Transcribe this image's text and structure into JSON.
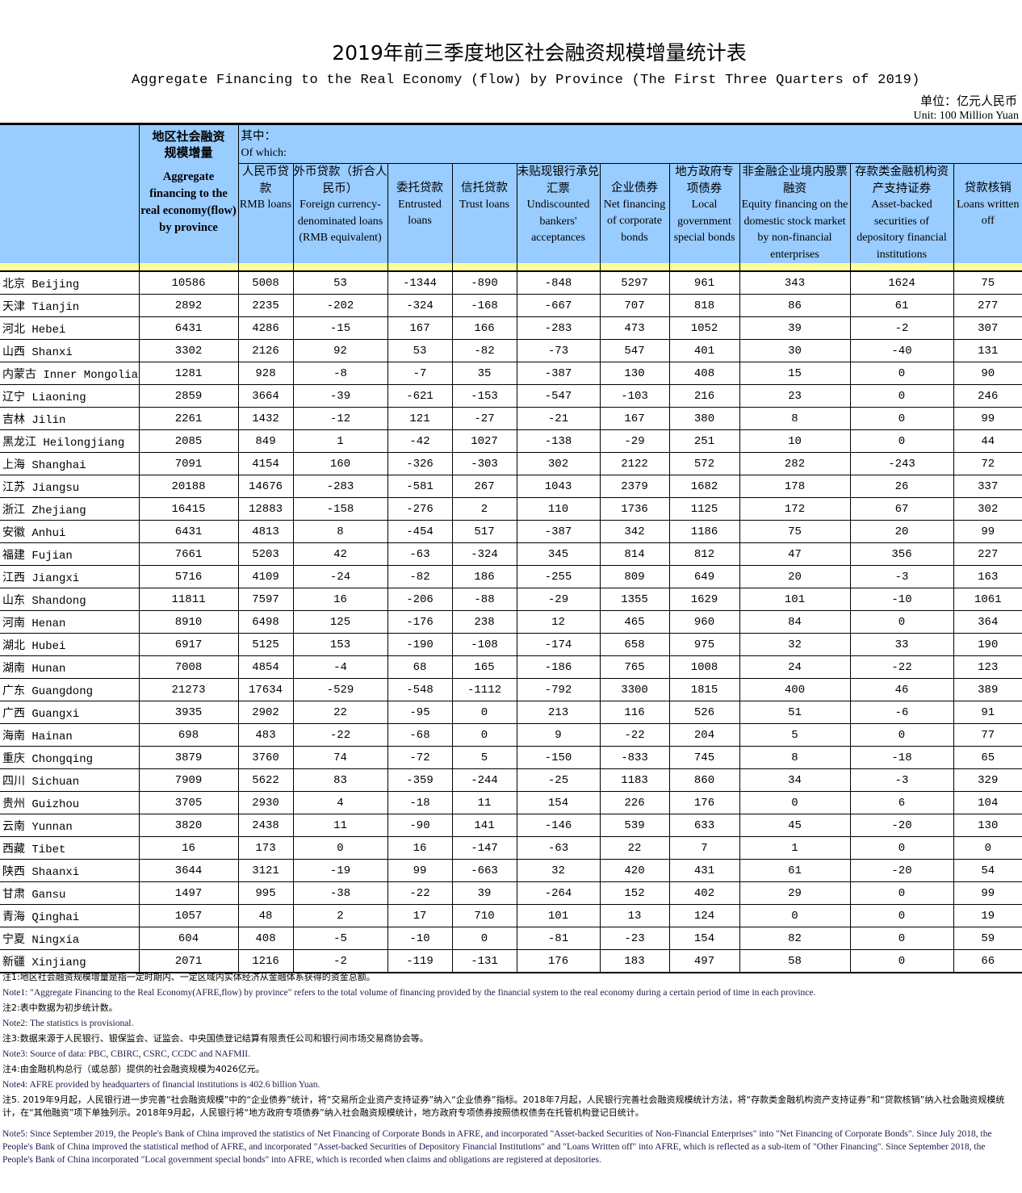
{
  "title": "2019年前三季度地区社会融资规模增量统计表",
  "subtitle": "Aggregate Financing to the Real Economy (flow)  by Province (The First Three Quarters of 2019)",
  "unit_cn": "单位：亿元人民币",
  "unit_en": "Unit: 100 Million Yuan",
  "header": {
    "total_cn": "地区社会融资规模增量",
    "total_en": "Aggregate financing to the real economy(flow) by province",
    "of_which_cn": "其中：",
    "of_which_en": "Of which:",
    "columns": [
      {
        "cn": "人民币贷款",
        "en": "RMB loans"
      },
      {
        "cn": "外币贷款（折合人民币）",
        "en": "Foreign currency-denominated loans (RMB equivalent)"
      },
      {
        "cn": "委托贷款",
        "en": "Entrusted loans"
      },
      {
        "cn": "信托贷款",
        "en": "Trust loans"
      },
      {
        "cn": "未贴现银行承兑汇票",
        "en": "Undiscounted bankers' acceptances"
      },
      {
        "cn": "企业债券",
        "en": "Net financing of corporate bonds"
      },
      {
        "cn": "地方政府专项债券",
        "en": "Local government special bonds"
      },
      {
        "cn": "非金融企业境内股票融资",
        "en": "Equity financing on the domestic stock market by non-financial enterprises"
      },
      {
        "cn": "存款类金融机构资产支持证券",
        "en": "Asset-backed securities of depository financial institutions"
      },
      {
        "cn": "贷款核销",
        "en": "Loans written off"
      }
    ]
  },
  "rows": [
    [
      "北京 Beijing",
      10586,
      5008,
      53,
      -1344,
      -890,
      -848,
      5297,
      961,
      343,
      1624,
      75
    ],
    [
      "天津 Tianjin",
      2892,
      2235,
      -202,
      -324,
      -168,
      -667,
      707,
      818,
      86,
      61,
      277
    ],
    [
      "河北 Hebei",
      6431,
      4286,
      -15,
      167,
      166,
      -283,
      473,
      1052,
      39,
      -2,
      307
    ],
    [
      "山西 Shanxi",
      3302,
      2126,
      92,
      53,
      -82,
      -73,
      547,
      401,
      30,
      -40,
      131
    ],
    [
      "内蒙古 Inner Mongolia",
      1281,
      928,
      -8,
      -7,
      35,
      -387,
      130,
      408,
      15,
      0,
      90
    ],
    [
      "辽宁 Liaoning",
      2859,
      3664,
      -39,
      -621,
      -153,
      -547,
      -103,
      216,
      23,
      0,
      246
    ],
    [
      "吉林 Jilin",
      2261,
      1432,
      -12,
      121,
      -27,
      -21,
      167,
      380,
      8,
      0,
      99
    ],
    [
      "黑龙江 Heilongjiang",
      2085,
      849,
      1,
      -42,
      1027,
      -138,
      -29,
      251,
      10,
      0,
      44
    ],
    [
      "上海 Shanghai",
      7091,
      4154,
      160,
      -326,
      -303,
      302,
      2122,
      572,
      282,
      -243,
      72
    ],
    [
      "江苏 Jiangsu",
      20188,
      14676,
      -283,
      -581,
      267,
      1043,
      2379,
      1682,
      178,
      26,
      337
    ],
    [
      "浙江 Zhejiang",
      16415,
      12883,
      -158,
      -276,
      2,
      110,
      1736,
      1125,
      172,
      67,
      302
    ],
    [
      "安徽 Anhui",
      6431,
      4813,
      8,
      -454,
      517,
      -387,
      342,
      1186,
      75,
      20,
      99
    ],
    [
      "福建 Fujian",
      7661,
      5203,
      42,
      -63,
      -324,
      345,
      814,
      812,
      47,
      356,
      227
    ],
    [
      "江西 Jiangxi",
      5716,
      4109,
      -24,
      -82,
      186,
      -255,
      809,
      649,
      20,
      -3,
      163
    ],
    [
      "山东 Shandong",
      11811,
      7597,
      16,
      -206,
      -88,
      -29,
      1355,
      1629,
      101,
      -10,
      1061
    ],
    [
      "河南 Henan",
      8910,
      6498,
      125,
      -176,
      238,
      12,
      465,
      960,
      84,
      0,
      364
    ],
    [
      "湖北 Hubei",
      6917,
      5125,
      153,
      -190,
      -108,
      -174,
      658,
      975,
      32,
      33,
      190
    ],
    [
      "湖南 Hunan",
      7008,
      4854,
      -4,
      68,
      165,
      -186,
      765,
      1008,
      24,
      -22,
      123
    ],
    [
      "广东 Guangdong",
      21273,
      17634,
      -529,
      -548,
      -1112,
      -792,
      3300,
      1815,
      400,
      46,
      389
    ],
    [
      "广西 Guangxi",
      3935,
      2902,
      22,
      -95,
      0,
      213,
      116,
      526,
      51,
      -6,
      91
    ],
    [
      "海南 Hainan",
      698,
      483,
      -22,
      -68,
      0,
      9,
      -22,
      204,
      5,
      0,
      77
    ],
    [
      "重庆 Chongqing",
      3879,
      3760,
      74,
      -72,
      5,
      -150,
      -833,
      745,
      8,
      -18,
      65
    ],
    [
      "四川 Sichuan",
      7909,
      5622,
      83,
      -359,
      -244,
      -25,
      1183,
      860,
      34,
      -3,
      329
    ],
    [
      "贵州 Guizhou",
      3705,
      2930,
      4,
      -18,
      11,
      154,
      226,
      176,
      0,
      6,
      104
    ],
    [
      "云南 Yunnan",
      3820,
      2438,
      11,
      -90,
      141,
      -146,
      539,
      633,
      45,
      -20,
      130
    ],
    [
      "西藏 Tibet",
      16,
      173,
      0,
      16,
      -147,
      -63,
      22,
      7,
      1,
      0,
      0
    ],
    [
      "陕西 Shaanxi",
      3644,
      3121,
      -19,
      99,
      -663,
      32,
      420,
      431,
      61,
      -20,
      54
    ],
    [
      "甘肃 Gansu",
      1497,
      995,
      -38,
      -22,
      39,
      -264,
      152,
      402,
      29,
      0,
      99
    ],
    [
      "青海 Qinghai",
      1057,
      48,
      2,
      17,
      710,
      101,
      13,
      124,
      0,
      0,
      19
    ],
    [
      "宁夏 Ningxia",
      604,
      408,
      -5,
      -10,
      0,
      -81,
      -23,
      154,
      82,
      0,
      59
    ],
    [
      "新疆 Xinjiang",
      2071,
      1216,
      -2,
      -119,
      -131,
      176,
      183,
      497,
      58,
      0,
      66
    ]
  ],
  "notes": [
    {
      "lang": "cn",
      "text": "注1:地区社会融资规模增量是指一定时期内、一定区域内实体经济从金融体系获得的资金总额。"
    },
    {
      "lang": "en",
      "text": "Note1: \"Aggregate Financing to the Real Economy(AFRE,flow) by province\" refers to the total volume of financing provided by the financial system to the real economy during a certain period of time in each province."
    },
    {
      "lang": "cn",
      "text": "注2:表中数据为初步统计数。"
    },
    {
      "lang": "en",
      "text": "Note2: The statistics is provisional."
    },
    {
      "lang": "cn",
      "text": "注3:数据来源于人民银行、银保监会、证监会、中央国债登记结算有限责任公司和银行间市场交易商协会等。"
    },
    {
      "lang": "en",
      "text": "Note3: Source of data: PBC, CBIRC, CSRC, CCDC and NAFMII."
    },
    {
      "lang": "cn",
      "text": "注4:由金融机构总行（或总部）提供的社会融资规模为4026亿元。"
    },
    {
      "lang": "en",
      "text": "Note4: AFRE provided by headquarters of financial institutions is 402.6 billion Yuan."
    },
    {
      "lang": "cn",
      "text": "注5. 2019年9月起，人民银行进一步完善“社会融资规模”中的“企业债券”统计，将“交易所企业资产支持证券”纳入“企业债券”指标。2018年7月起，人民银行完善社会融资规模统计方法，将“存款类金融机构资产支持证券”和“贷款核销”纳入社会融资规模统计，在“其他融资”项下单独列示。2018年9月起，人民银行将“地方政府专项债券”纳入社会融资规模统计，地方政府专项债券按照债权债务在托管机构登记日统计。"
    },
    {
      "lang": "en",
      "text": "Note5: Since September 2019, the People's Bank of China improved the statistics of Net Financing of Corporate Bonds in AFRE, and incorporated \"Asset-backed Securities of Non-Financial Enterprises\" into \"Net Financing of Corporate Bonds\".  Since July 2018, the People's Bank of China improved the statistical method of AFRE, and incorporated \"Asset-backed Securities of Depository Financial Institutions\" and \"Loans Written off\" into AFRE, which is reflected as a sub-item of \"Other Financing\".   Since September 2018, the People's Bank of China incorporated \"Local government special bonds\" into AFRE, which is recorded when claims and obligations are registered at depositories."
    }
  ]
}
